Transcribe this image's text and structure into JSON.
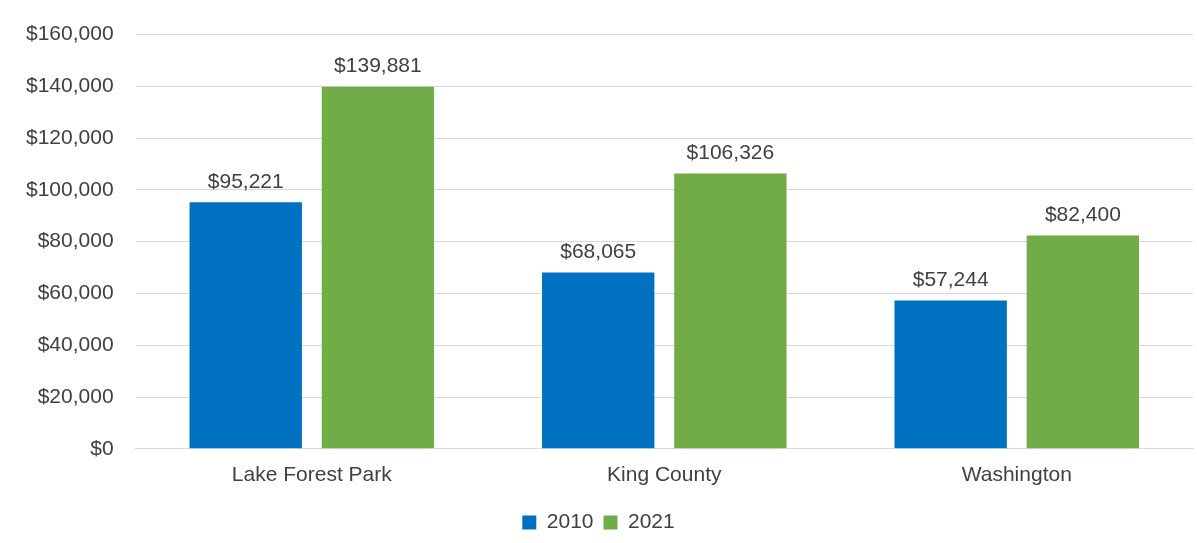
{
  "chart_data": {
    "type": "bar",
    "categories": [
      "Lake Forest Park",
      "King County",
      "Washington"
    ],
    "series": [
      {
        "name": "2010",
        "color": "#0070c0",
        "values": [
          95221,
          68065,
          57244
        ],
        "value_labels": [
          "$95,221",
          "$68,065",
          "$57,244"
        ]
      },
      {
        "name": "2021",
        "color": "#70ad47",
        "values": [
          139881,
          106326,
          82400
        ],
        "value_labels": [
          "$139,881",
          "$106,326",
          "$82,400"
        ]
      }
    ],
    "ylim": [
      0,
      160000
    ],
    "yticks": [
      {
        "value": 0,
        "label": "$0"
      },
      {
        "value": 20000,
        "label": "$20,000"
      },
      {
        "value": 40000,
        "label": "$40,000"
      },
      {
        "value": 60000,
        "label": "$60,000"
      },
      {
        "value": 80000,
        "label": "$80,000"
      },
      {
        "value": 100000,
        "label": "$100,000"
      },
      {
        "value": 120000,
        "label": "$120,000"
      },
      {
        "value": 140000,
        "label": "$140,000"
      },
      {
        "value": 160000,
        "label": "$160,000"
      }
    ],
    "grid": "y",
    "legend": "bottom"
  }
}
